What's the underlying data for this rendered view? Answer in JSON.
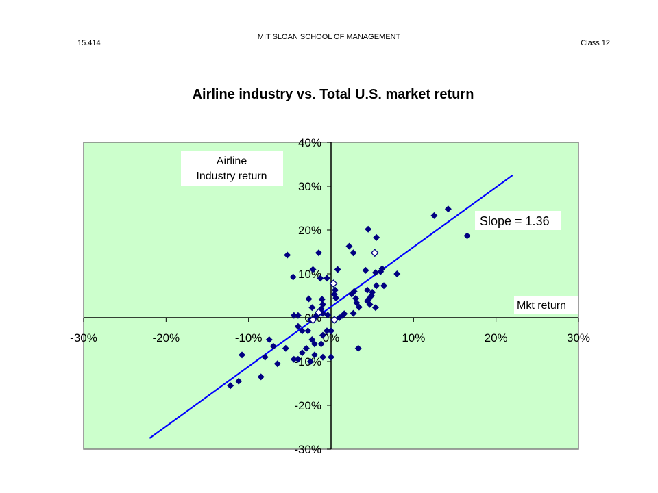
{
  "header": {
    "course": "15.414",
    "school": "MIT SLOAN SCHOOL OF MANAGEMENT",
    "class": "Class 12"
  },
  "colors": {
    "plot_background": "#ccffcc",
    "regression_line": "#0000ff",
    "marker": "#000080"
  },
  "chart_data": {
    "type": "scatter",
    "title": "Airline industry vs. Total U.S. market return",
    "xlabel": "Mkt return",
    "ylabel_lines": [
      "Airline",
      "Industry return"
    ],
    "xlim": [
      -0.3,
      0.3
    ],
    "ylim": [
      -0.3,
      0.4
    ],
    "grid": false,
    "x_ticks": [
      {
        "value": -0.3,
        "label": "-30%"
      },
      {
        "value": -0.2,
        "label": "-20%"
      },
      {
        "value": -0.1,
        "label": "-10%"
      },
      {
        "value": 0,
        "label": "0%"
      },
      {
        "value": 0.1,
        "label": "10%"
      },
      {
        "value": 0.2,
        "label": "20%"
      },
      {
        "value": 0.3,
        "label": "30%"
      }
    ],
    "y_ticks": [
      {
        "value": -0.3,
        "label": "-30%"
      },
      {
        "value": -0.2,
        "label": "-20%"
      },
      {
        "value": -0.1,
        "label": "-10%"
      },
      {
        "value": 0,
        "label": "0%"
      },
      {
        "value": 0.1,
        "label": "10%"
      },
      {
        "value": 0.2,
        "label": "20%"
      },
      {
        "value": 0.3,
        "label": "30%"
      },
      {
        "value": 0.4,
        "label": "40%"
      }
    ],
    "annotation": "Slope = 1.36",
    "regression": {
      "x": [
        -0.22,
        0.22
      ],
      "y": [
        -0.275,
        0.325
      ]
    },
    "points": [
      [
        0.165,
        0.187
      ],
      [
        0.142,
        0.248
      ],
      [
        0.125,
        0.233
      ],
      [
        0.08,
        0.1
      ],
      [
        0.064,
        0.073
      ],
      [
        0.06,
        0.105
      ],
      [
        0.062,
        0.112
      ],
      [
        0.055,
        0.183
      ],
      [
        0.045,
        0.202
      ],
      [
        0.054,
        0.103
      ],
      [
        0.055,
        0.073
      ],
      [
        0.05,
        0.058
      ],
      [
        0.049,
        0.05
      ],
      [
        0.046,
        0.043
      ],
      [
        0.044,
        0.038
      ],
      [
        0.047,
        0.03
      ],
      [
        0.054,
        0.023
      ],
      [
        0.042,
        0.108
      ],
      [
        0.044,
        0.063
      ],
      [
        0.022,
        0.163
      ],
      [
        0.027,
        0.148
      ],
      [
        0.008,
        0.11
      ],
      [
        0.028,
        0.06
      ],
      [
        0.025,
        0.054
      ],
      [
        0.03,
        0.044
      ],
      [
        0.031,
        0.034
      ],
      [
        0.034,
        0.024
      ],
      [
        0.027,
        0.01
      ],
      [
        0.016,
        0.009
      ],
      [
        0.014,
        0.005
      ],
      [
        0.005,
        0.063
      ],
      [
        0.004,
        0.053
      ],
      [
        0.006,
        0.045
      ],
      [
        -0.015,
        0.148
      ],
      [
        -0.013,
        0.09
      ],
      [
        -0.005,
        0.09
      ],
      [
        -0.022,
        0.11
      ],
      [
        -0.053,
        0.143
      ],
      [
        -0.046,
        0.093
      ],
      [
        -0.027,
        0.043
      ],
      [
        -0.023,
        0.023
      ],
      [
        -0.011,
        0.042
      ],
      [
        -0.01,
        0.03
      ],
      [
        -0.012,
        0.02
      ],
      [
        -0.013,
        0.015
      ],
      [
        -0.016,
        0.01
      ],
      [
        -0.018,
        0.004
      ],
      [
        -0.01,
        0.01
      ],
      [
        -0.004,
        0.006
      ],
      [
        -0.04,
        0.005
      ],
      [
        -0.045,
        0.005
      ],
      [
        -0.025,
        -0.005
      ],
      [
        -0.04,
        -0.02
      ],
      [
        -0.035,
        -0.03
      ],
      [
        -0.028,
        -0.03
      ],
      [
        -0.023,
        -0.05
      ],
      [
        -0.01,
        -0.04
      ],
      [
        -0.012,
        -0.06
      ],
      [
        -0.02,
        -0.06
      ],
      [
        -0.03,
        -0.07
      ],
      [
        -0.035,
        -0.08
      ],
      [
        -0.04,
        -0.095
      ],
      [
        -0.045,
        -0.095
      ],
      [
        -0.055,
        -0.07
      ],
      [
        -0.02,
        -0.085
      ],
      [
        -0.01,
        -0.09
      ],
      [
        -0.025,
        -0.1
      ],
      [
        0.0,
        -0.09
      ],
      [
        -0.005,
        -0.03
      ],
      [
        0.0,
        -0.03
      ],
      [
        0.01,
        0.0
      ],
      [
        0.033,
        -0.07
      ],
      [
        -0.075,
        -0.05
      ],
      [
        -0.08,
        -0.09
      ],
      [
        -0.065,
        -0.105
      ],
      [
        -0.085,
        -0.135
      ],
      [
        -0.108,
        -0.085
      ],
      [
        -0.112,
        -0.145
      ],
      [
        -0.122,
        -0.155
      ],
      [
        -0.07,
        -0.065
      ]
    ],
    "hollow_points": [
      [
        0.053,
        0.148
      ],
      [
        0.003,
        0.078
      ],
      [
        -0.015,
        0.012
      ],
      [
        -0.022,
        -0.005
      ],
      [
        0.004,
        -0.005
      ]
    ]
  }
}
